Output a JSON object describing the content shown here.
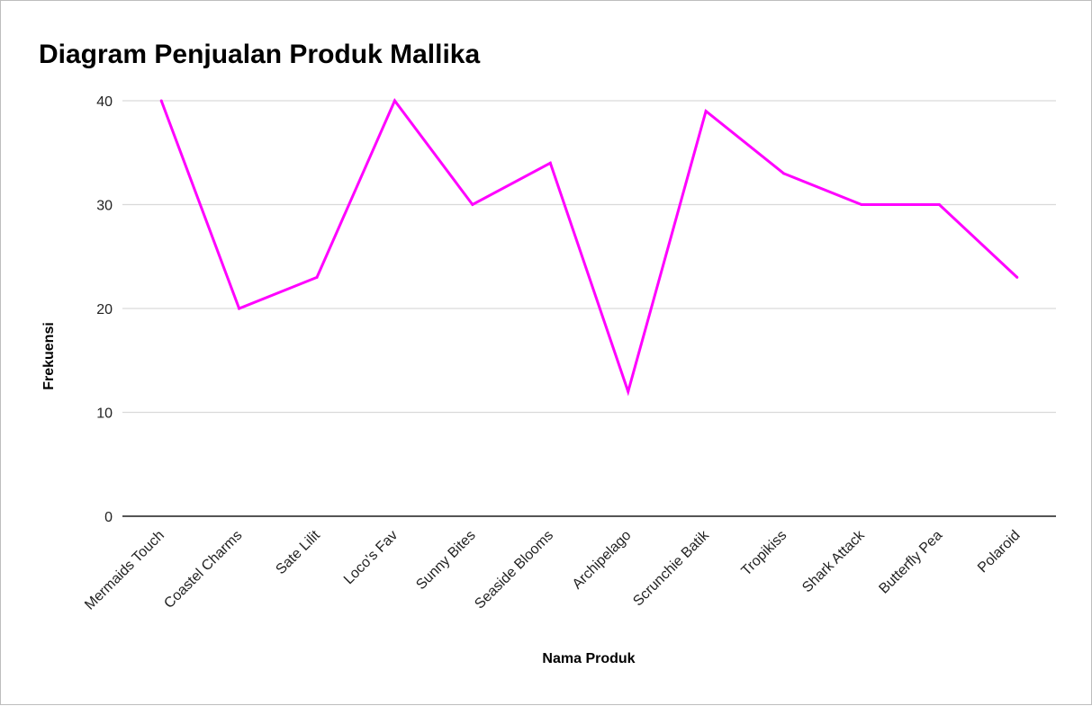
{
  "chart_data": {
    "type": "line",
    "title": "Diagram Penjualan Produk Mallika",
    "xlabel": "Nama Produk",
    "ylabel": "Frekuensi",
    "categories": [
      "Mermaids Touch",
      "Coastel Charms",
      "Sate Lilit",
      "Loco's Fav",
      "Sunny Bites",
      "Seaside Blooms",
      "Archipelago",
      "Scrunchie Batik",
      "Tropikiss",
      "Shark Attack",
      "Butterfly Pea",
      "Polaroid"
    ],
    "series": [
      {
        "values": [
          40,
          20,
          23,
          40,
          30,
          34,
          12,
          39,
          33,
          30,
          30,
          23
        ]
      }
    ],
    "ylim": [
      0,
      40
    ],
    "yticks": [
      "0",
      "10",
      "20",
      "30",
      "40"
    ],
    "grid": true,
    "legend": "none",
    "colors": {
      "line": "#ff00ff",
      "grid": "#d9d9d9",
      "baseline": "#555555"
    }
  }
}
